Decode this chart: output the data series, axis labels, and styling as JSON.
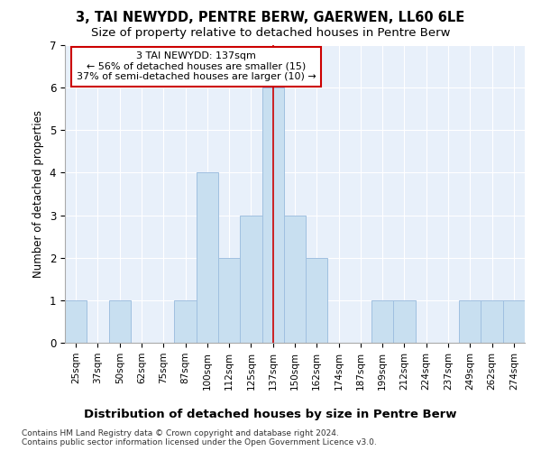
{
  "title": "3, TAI NEWYDD, PENTRE BERW, GAERWEN, LL60 6LE",
  "subtitle": "Size of property relative to detached houses in Pentre Berw",
  "xlabel": "Distribution of detached houses by size in Pentre Berw",
  "ylabel": "Number of detached properties",
  "categories": [
    "25sqm",
    "37sqm",
    "50sqm",
    "62sqm",
    "75sqm",
    "87sqm",
    "100sqm",
    "112sqm",
    "125sqm",
    "137sqm",
    "150sqm",
    "162sqm",
    "174sqm",
    "187sqm",
    "199sqm",
    "212sqm",
    "224sqm",
    "237sqm",
    "249sqm",
    "262sqm",
    "274sqm"
  ],
  "values": [
    1,
    0,
    1,
    0,
    0,
    1,
    4,
    2,
    3,
    6,
    3,
    2,
    0,
    0,
    1,
    1,
    0,
    0,
    1,
    1,
    1
  ],
  "bar_color": "#c8dff0",
  "bar_edge_color": "#a0c0e0",
  "highlight_index": 9,
  "highlight_color": "#cc0000",
  "annotation_text": "3 TAI NEWYDD: 137sqm\n← 56% of detached houses are smaller (15)\n37% of semi-detached houses are larger (10) →",
  "annotation_box_color": "#ffffff",
  "annotation_box_edge": "#cc0000",
  "ylim": [
    0,
    7
  ],
  "yticks": [
    0,
    1,
    2,
    3,
    4,
    5,
    6,
    7
  ],
  "background_color": "#e8f0fa",
  "footer": "Contains HM Land Registry data © Crown copyright and database right 2024.\nContains public sector information licensed under the Open Government Licence v3.0.",
  "title_fontsize": 10.5,
  "subtitle_fontsize": 9.5,
  "xlabel_fontsize": 9.5,
  "ylabel_fontsize": 8.5,
  "tick_fontsize": 7.5,
  "annotation_fontsize": 8,
  "footer_fontsize": 6.5
}
